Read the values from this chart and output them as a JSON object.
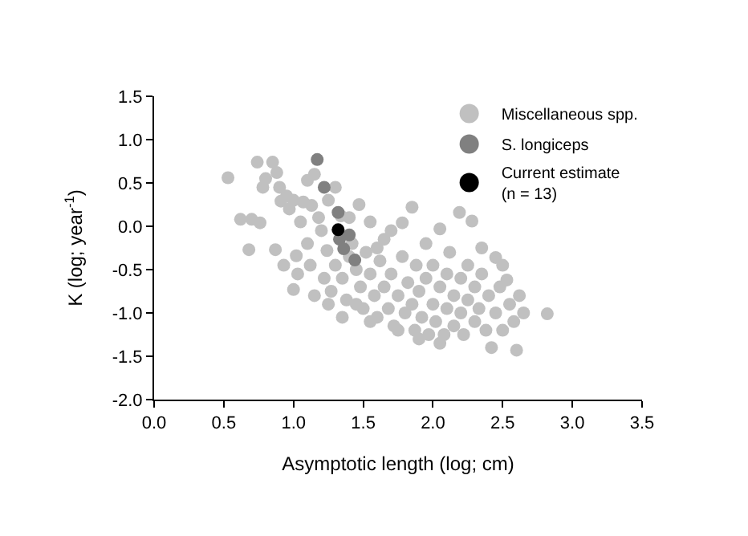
{
  "chart_data": {
    "type": "scatter",
    "xlabel": "Asymptotic length (log; cm)",
    "ylabel": "K (log; year$^{-1}$)",
    "xlim": [
      0,
      3.5
    ],
    "xticks": [
      {
        "value": 0,
        "label": "0.0"
      },
      0.5,
      {
        "value": 1,
        "label": "1.0"
      },
      1.5,
      {
        "value": 2,
        "label": "2.0"
      },
      2.5,
      {
        "value": 3,
        "label": "3.0"
      },
      3.5
    ],
    "ylim": [
      -2,
      1.5
    ],
    "yticks": [
      {
        "value": -2,
        "label": "-2.0"
      },
      -1.5,
      {
        "value": -1,
        "label": "-1.0"
      },
      -0.5,
      {
        "value": 0,
        "label": "0.0"
      },
      0.5,
      {
        "value": 1,
        "label": "1.0"
      },
      1.5
    ],
    "legend": "top right",
    "marker": "circle",
    "series": [
      {
        "name": "Miscellaneous spp.",
        "color": "#c0c0c0",
        "x": [
          0.53,
          0.62,
          0.68,
          0.7,
          0.74,
          0.76,
          0.78,
          0.8,
          0.85,
          0.87,
          0.88,
          0.9,
          0.91,
          0.93,
          0.95,
          0.97,
          1.0,
          1.0,
          1.02,
          1.03,
          1.05,
          1.07,
          1.1,
          1.1,
          1.12,
          1.13,
          1.15,
          1.18,
          1.2,
          1.22,
          1.24,
          1.25,
          1.27,
          1.3,
          1.3,
          1.34,
          1.35,
          1.38,
          1.4,
          1.42,
          1.45,
          1.47,
          1.48,
          1.5,
          1.52,
          1.55,
          1.55,
          1.58,
          1.6,
          1.62,
          1.65,
          1.65,
          1.68,
          1.7,
          1.72,
          1.75,
          1.78,
          1.78,
          1.8,
          1.82,
          1.85,
          1.85,
          1.87,
          1.88,
          1.9,
          1.92,
          1.95,
          1.95,
          1.97,
          2.0,
          2.0,
          2.02,
          2.05,
          2.05,
          2.08,
          2.1,
          2.1,
          2.12,
          2.15,
          2.15,
          2.19,
          2.2,
          2.2,
          2.22,
          2.25,
          2.25,
          2.28,
          2.3,
          2.3,
          2.33,
          2.35,
          2.38,
          2.4,
          2.42,
          2.45,
          2.45,
          2.48,
          2.5,
          2.53,
          2.55,
          2.58,
          2.6,
          2.62,
          2.65,
          2.82,
          1.4,
          1.6,
          1.7,
          1.75,
          1.9,
          2.05,
          1.55,
          1.45,
          1.35,
          1.25,
          1.15,
          2.35,
          2.5
        ],
        "values": [
          0.56,
          0.08,
          -0.27,
          0.08,
          0.74,
          0.04,
          0.45,
          0.55,
          0.74,
          -0.27,
          0.62,
          0.45,
          0.29,
          -0.45,
          0.35,
          0.2,
          0.3,
          -0.73,
          -0.34,
          -0.55,
          0.05,
          0.28,
          0.53,
          -0.2,
          -0.45,
          0.24,
          0.6,
          0.1,
          -0.05,
          -0.6,
          -0.28,
          0.3,
          -0.75,
          0.45,
          -0.45,
          0.12,
          -0.6,
          -0.85,
          0.1,
          -0.2,
          -0.5,
          0.25,
          -0.7,
          -0.95,
          -0.3,
          0.05,
          -0.55,
          -0.8,
          -1.05,
          -0.4,
          -0.15,
          -0.7,
          -0.95,
          -0.55,
          -1.15,
          -0.8,
          0.04,
          -0.35,
          -1.0,
          -0.65,
          0.22,
          -0.9,
          -1.2,
          -0.45,
          -0.75,
          -1.05,
          -0.2,
          -0.6,
          -1.25,
          -0.9,
          -0.45,
          -1.1,
          -0.03,
          -0.7,
          -1.25,
          -0.55,
          -0.95,
          -0.3,
          -1.15,
          -0.8,
          0.16,
          -0.6,
          -1.0,
          -1.25,
          -0.45,
          -0.85,
          0.06,
          -1.1,
          -0.7,
          -0.95,
          -0.55,
          -1.2,
          -0.8,
          -1.4,
          -0.36,
          -1.0,
          -0.7,
          -1.2,
          -0.62,
          -0.9,
          -1.1,
          -1.43,
          -0.8,
          -1.0,
          -1.01,
          -0.35,
          -0.25,
          -0.05,
          -1.2,
          -1.3,
          -1.35,
          -1.1,
          -0.9,
          -1.05,
          -0.9,
          -0.8,
          -0.25,
          -0.45
        ]
      },
      {
        "name": "S. longiceps",
        "color": "#808080",
        "x": [
          1.17,
          1.22,
          1.32,
          1.4,
          1.36,
          1.44,
          1.33
        ],
        "values": [
          0.77,
          0.45,
          0.16,
          -0.1,
          -0.26,
          -0.39,
          -0.15
        ]
      },
      {
        "name": "Current estimate\n(n = 13)",
        "color": "#000000",
        "x": [
          1.32
        ],
        "values": [
          -0.04
        ]
      }
    ]
  }
}
